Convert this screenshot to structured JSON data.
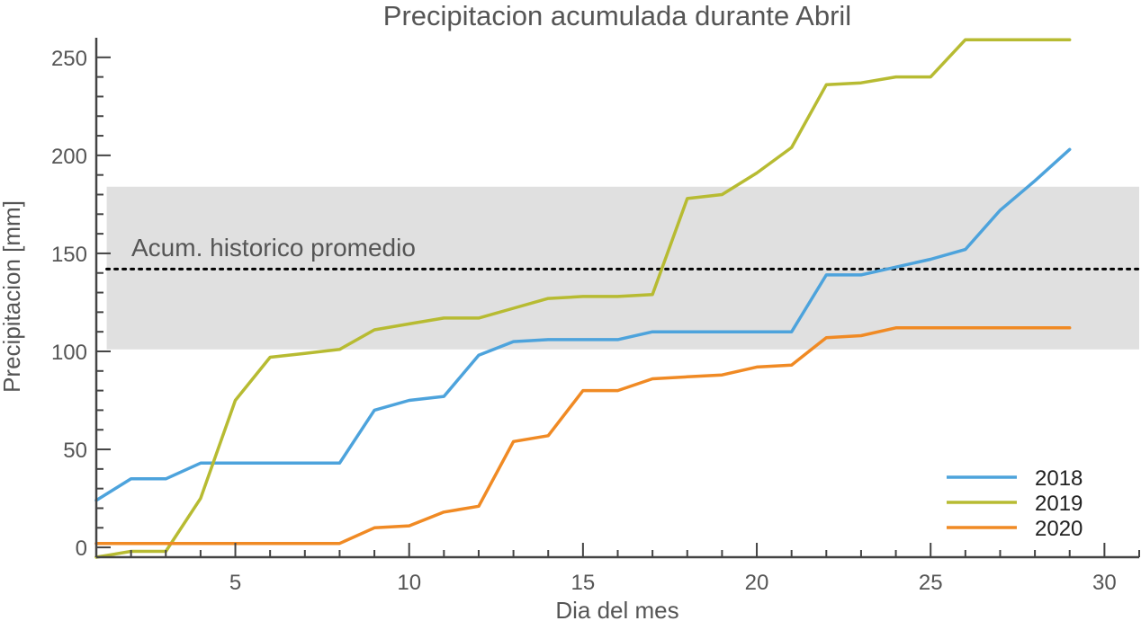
{
  "chart_data": {
    "type": "line",
    "title": "Precipitacion acumulada durante Abril",
    "xlabel": "Dia del mes",
    "ylabel": "Precipitacion [mm]",
    "xlim": [
      1,
      31
    ],
    "ylim": [
      -5,
      260
    ],
    "xticks": [
      5,
      10,
      15,
      20,
      25,
      30
    ],
    "yticks": [
      0,
      50,
      100,
      150,
      200,
      250
    ],
    "grid": false,
    "legend_position": "bottom-right",
    "band": {
      "label": "Acum. historico promedio",
      "low": 101,
      "high": 184,
      "mean": 142,
      "color": "#e0e0e0",
      "line_color": "#000000"
    },
    "series": [
      {
        "name": "2018",
        "color": "#4da3dc",
        "x": [
          1,
          2,
          3,
          4,
          5,
          6,
          7,
          8,
          9,
          10,
          11,
          12,
          13,
          14,
          15,
          16,
          17,
          18,
          19,
          20,
          21,
          22,
          23,
          24,
          25,
          26,
          27,
          28,
          29
        ],
        "y": [
          24,
          35,
          35,
          43,
          43,
          43,
          43,
          43,
          70,
          75,
          77,
          98,
          105,
          106,
          106,
          106,
          110,
          110,
          110,
          110,
          110,
          139,
          139,
          143,
          147,
          152,
          172,
          187,
          203
        ]
      },
      {
        "name": "2019",
        "color": "#b7bb32",
        "x": [
          1,
          2,
          3,
          4,
          5,
          6,
          7,
          8,
          9,
          10,
          11,
          12,
          13,
          14,
          15,
          16,
          17,
          18,
          19,
          20,
          21,
          22,
          23,
          24,
          25,
          26,
          27,
          28,
          29
        ],
        "y": [
          -5,
          -2,
          -2,
          25,
          75,
          97,
          99,
          101,
          111,
          114,
          117,
          117,
          122,
          127,
          128,
          128,
          129,
          178,
          180,
          191,
          204,
          236,
          237,
          240,
          240,
          259,
          259,
          259,
          259
        ]
      },
      {
        "name": "2020",
        "color": "#f08a24",
        "x": [
          1,
          2,
          3,
          4,
          5,
          6,
          7,
          8,
          9,
          10,
          11,
          12,
          13,
          14,
          15,
          16,
          17,
          18,
          19,
          20,
          21,
          22,
          23,
          24,
          25,
          26,
          27,
          28,
          29
        ],
        "y": [
          2,
          2,
          2,
          2,
          2,
          2,
          2,
          2,
          10,
          11,
          18,
          21,
          54,
          57,
          80,
          80,
          86,
          87,
          88,
          92,
          93,
          107,
          108,
          112,
          112,
          112,
          112,
          112,
          112
        ]
      }
    ]
  }
}
